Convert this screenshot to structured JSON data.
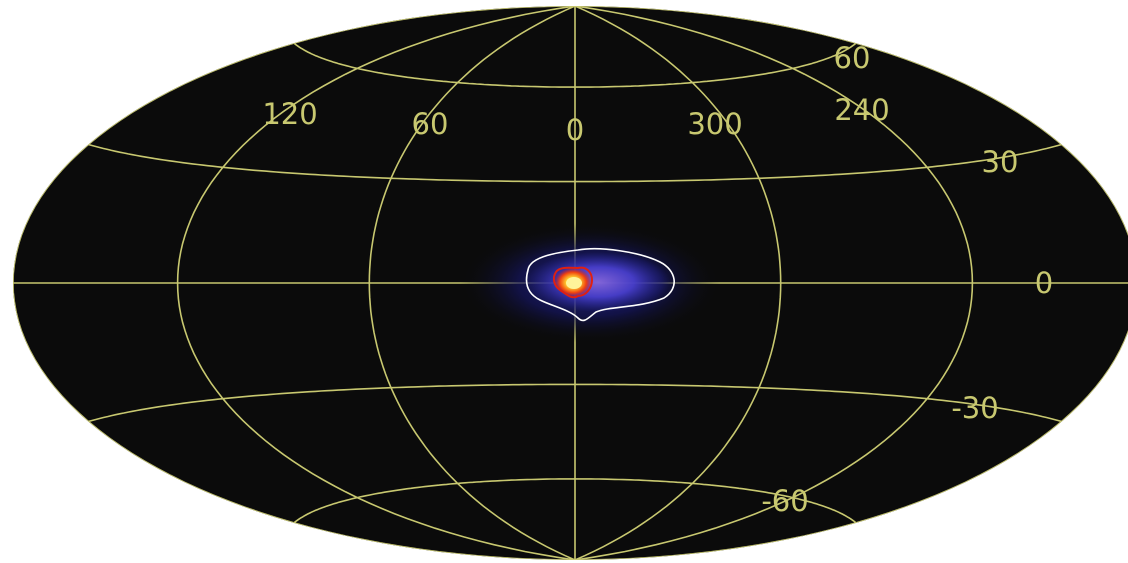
{
  "map": {
    "projection": "Hammer-Aitoff",
    "background_color": "#0b0b0b",
    "grid_color": "#c8c870",
    "longitude_grid_values": [
      180,
      120,
      60,
      0,
      300,
      240,
      180
    ],
    "latitude_grid_values": [
      60,
      30,
      0,
      -30,
      -60
    ],
    "longitude_labels": [
      {
        "text": "120",
        "lon": 120
      },
      {
        "text": "60",
        "lon": 60
      },
      {
        "text": "0",
        "lon": 0
      },
      {
        "text": "300",
        "lon": 300
      },
      {
        "text": "240",
        "lon": 240
      }
    ],
    "latitude_labels": [
      {
        "text": "60",
        "lat": 60
      },
      {
        "text": "30",
        "lat": 30
      },
      {
        "text": "0",
        "lat": 0
      },
      {
        "text": "-30",
        "lat": -30
      },
      {
        "text": "-60",
        "lat": -60
      }
    ],
    "emission": {
      "description_colors": [
        "#1a1a6e",
        "#3b36c8",
        "#8a5cd8",
        "#e03010",
        "#ffee40"
      ],
      "contour_color": "#ffffff"
    }
  }
}
